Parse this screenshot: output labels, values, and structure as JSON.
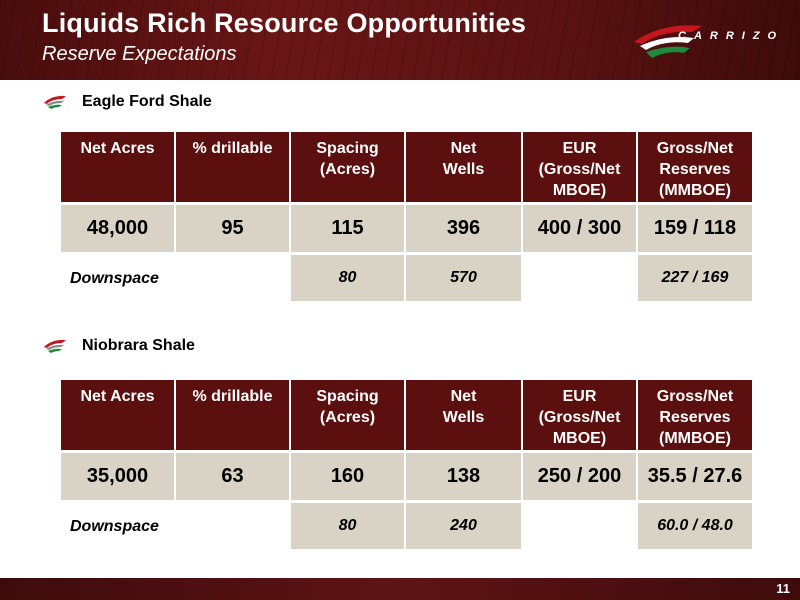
{
  "header": {
    "title": "Liquids Rich Resource Opportunities",
    "subtitle": "Reserve Expectations",
    "logo_text": "CARRIZO"
  },
  "colors": {
    "brand": "#5c0f0f",
    "cell_bg": "#d8d3c5",
    "logo_red": "#c8161d",
    "logo_green": "#1e8a3c"
  },
  "sections": [
    {
      "name": "Eagle Ford Shale",
      "headers": [
        "Net Acres",
        "% drillable",
        "Spacing\n(Acres)",
        "Net\nWells",
        "EUR\n(Gross/Net\nMBOE)",
        "Gross/Net\nReserves\n(MMBOE)"
      ],
      "values": [
        "48,000",
        "95",
        "115",
        "396",
        "400 / 300",
        "159 / 118"
      ],
      "downspace": {
        "label": "Downspace",
        "spacing": "80",
        "wells": "570",
        "reserves": "227 / 169"
      }
    },
    {
      "name": "Niobrara Shale",
      "headers": [
        "Net Acres",
        "% drillable",
        "Spacing\n(Acres)",
        "Net\nWells",
        "EUR\n(Gross/Net\nMBOE)",
        "Gross/Net\nReserves\n(MMBOE)"
      ],
      "values": [
        "35,000",
        "63",
        "160",
        "138",
        "250 / 200",
        "35.5 / 27.6"
      ],
      "downspace": {
        "label": "Downspace",
        "spacing": "80",
        "wells": "240",
        "reserves": "60.0 / 48.0"
      }
    }
  ],
  "footer": {
    "page_number": "11"
  }
}
